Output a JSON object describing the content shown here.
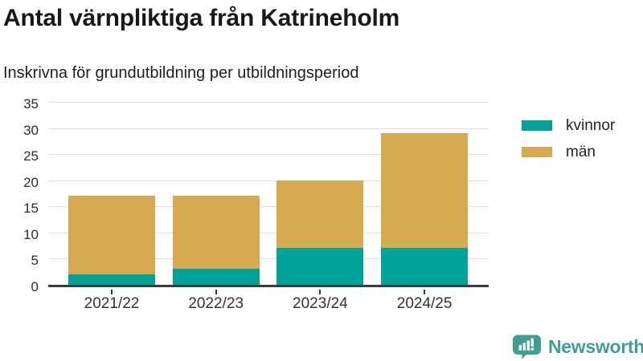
{
  "header": {
    "title": "Antal värnpliktiga från Katrineholm",
    "subtitle": "Inskrivna för grundutbildning per utbildningsperiod"
  },
  "chart_data": {
    "type": "bar",
    "stacked": true,
    "title": "Antal värnpliktiga från Katrineholm",
    "subtitle": "Inskrivna för grundutbildning per utbildningsperiod",
    "categories": [
      "2021/22",
      "2022/23",
      "2023/24",
      "2024/25"
    ],
    "series": [
      {
        "name": "kvinnor",
        "color": "#00a398",
        "values": [
          2,
          3,
          7,
          7
        ]
      },
      {
        "name": "män",
        "color": "#d7aa51",
        "values": [
          15,
          14,
          13,
          22
        ]
      }
    ],
    "stack_totals": [
      17,
      17,
      20,
      29
    ],
    "xlabel": "",
    "ylabel": "",
    "ylim": [
      0,
      35
    ],
    "yticks": [
      0,
      5,
      10,
      15,
      20,
      25,
      30,
      35
    ],
    "grid": true,
    "legend_position": "right",
    "axis_color": "#3b3b3b",
    "gridline_color": "#e0e0e0"
  },
  "footer": {
    "brand": "Newsworthy",
    "brand_color": "#40a090",
    "logo_icon": "newsworthy-chart-bubble-icon"
  }
}
